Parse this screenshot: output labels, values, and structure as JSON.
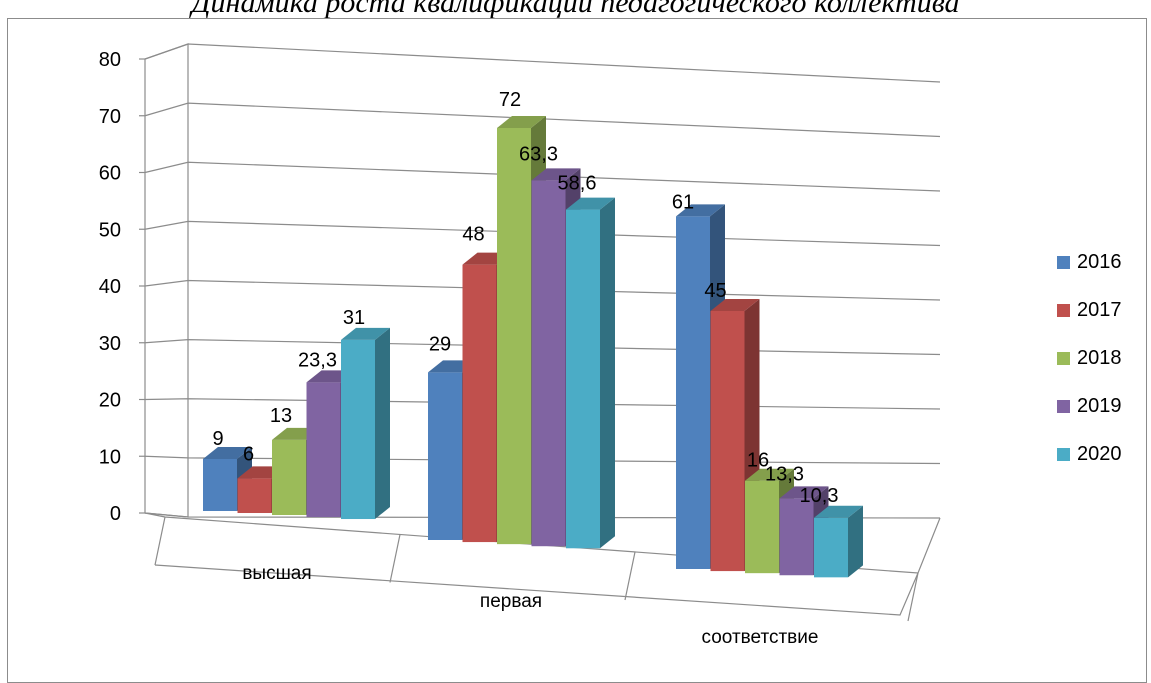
{
  "chart_data": {
    "type": "bar",
    "title": "Динамика роста квалификации педагогического коллектива",
    "categories": [
      "высшая",
      "первая",
      "соответствие"
    ],
    "series": [
      {
        "name": "2016",
        "values": [
          9,
          29,
          61
        ],
        "labels": [
          "9",
          "29",
          "61"
        ],
        "color": "#4f81bd"
      },
      {
        "name": "2017",
        "values": [
          6,
          48,
          45
        ],
        "labels": [
          "6",
          "48",
          "45"
        ],
        "color": "#c0504d"
      },
      {
        "name": "2018",
        "values": [
          13,
          72,
          16
        ],
        "labels": [
          "13",
          "72",
          "16"
        ],
        "color": "#9bbb59"
      },
      {
        "name": "2019",
        "values": [
          23.3,
          63.3,
          13.3
        ],
        "labels": [
          "23,3",
          "63,3",
          "13,3"
        ],
        "color": "#8064a2"
      },
      {
        "name": "2020",
        "values": [
          31,
          58.6,
          10.3
        ],
        "labels": [
          "31",
          "58,6",
          "10,3"
        ],
        "color": "#4bacc6"
      }
    ],
    "y_ticks": [
      "0",
      "10",
      "20",
      "30",
      "40",
      "50",
      "60",
      "70",
      "80"
    ],
    "ylim": [
      0,
      80
    ],
    "grid": true,
    "style": "3d-clustered-column",
    "legend_position": "right"
  }
}
